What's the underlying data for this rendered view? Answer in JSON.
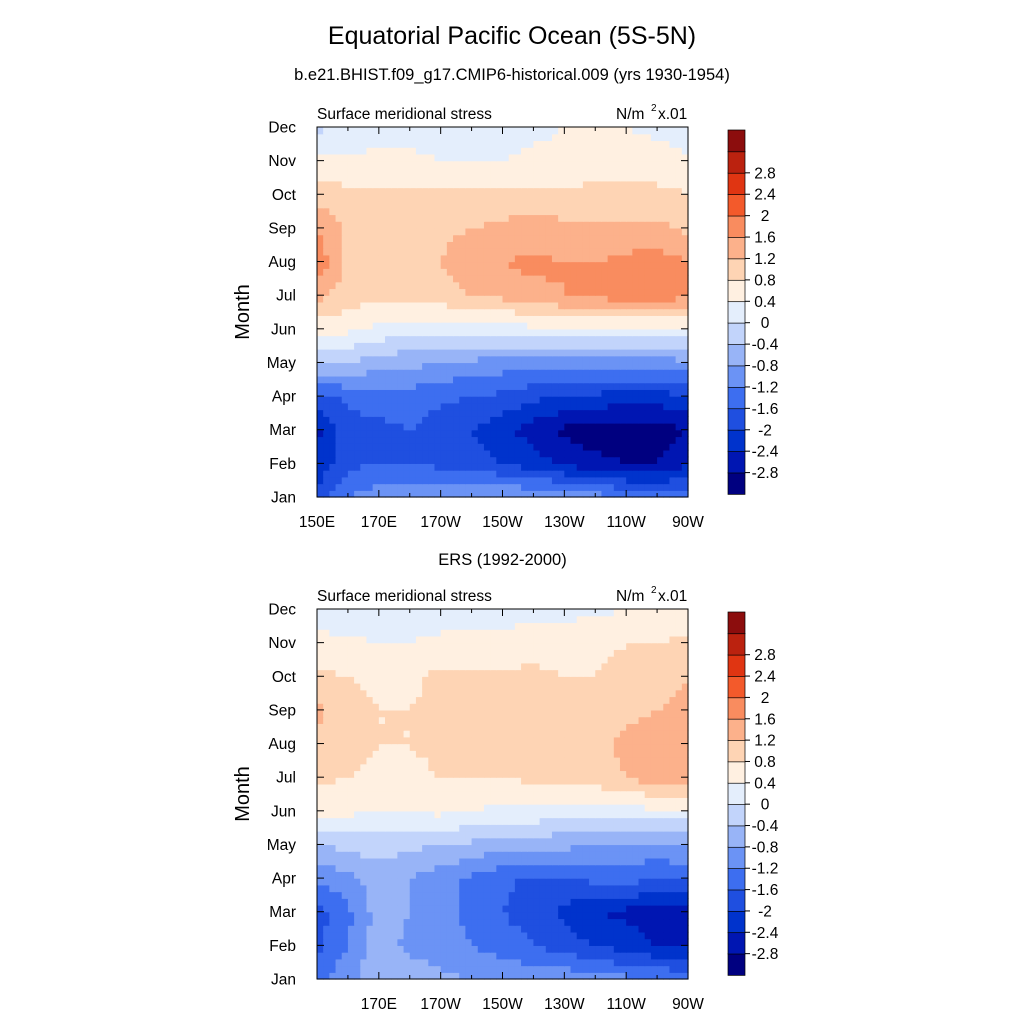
{
  "title": "Equatorial Pacific Ocean (5S-5N)",
  "subtitle": "b.e21.BHIST.f09_g17.CMIP6-historical.009 (yrs 1930-1954)",
  "colors": [
    "#000080",
    "#0016b2",
    "#0033cc",
    "#1f4fe0",
    "#3d6ef0",
    "#6b93f5",
    "#98b4f7",
    "#c2d4fb",
    "#e4eefc",
    "#fff0e1",
    "#fed4b4",
    "#fcb18b",
    "#f98c5f",
    "#f35a2b",
    "#e03512",
    "#bb220f",
    "#8c0d0d"
  ],
  "chart_data": [
    {
      "type": "heatmap",
      "title": "",
      "left_label": "Surface meridional stress",
      "units_label": "N/m",
      "units_sup": "2",
      "units_scale": "x.01",
      "ylabel": "Month",
      "y_ticks": [
        "Jan",
        "Feb",
        "Mar",
        "Apr",
        "May",
        "Jun",
        "Jul",
        "Aug",
        "Sep",
        "Oct",
        "Nov",
        "Dec"
      ],
      "x_ticks": [
        "150E",
        "170E",
        "170W",
        "150W",
        "130W",
        "110W",
        "90W"
      ],
      "colorbar_labels": [
        "-2.8",
        "-2.4",
        "-2",
        "-1.6",
        "-1.2",
        "-0.8",
        "-0.4",
        "0",
        "0.4",
        "0.8",
        "1.2",
        "1.6",
        "2",
        "2.4",
        "2.8"
      ],
      "x_lon": [
        150,
        160,
        170,
        180,
        190,
        200,
        210,
        220,
        230,
        240,
        250,
        260,
        270
      ],
      "values": [
        [
          -1.9,
          -1.2,
          -1.0,
          -0.9,
          -0.9,
          -0.8,
          -0.8,
          -0.8,
          -0.9,
          -1.0,
          -1.2,
          -1.4,
          -1.2
        ],
        [
          -2.3,
          -1.7,
          -1.6,
          -1.6,
          -1.7,
          -1.8,
          -2.0,
          -2.2,
          -2.5,
          -2.7,
          -2.8,
          -2.8,
          -2.5
        ],
        [
          -2.5,
          -1.8,
          -1.7,
          -1.6,
          -1.8,
          -2.0,
          -2.3,
          -2.6,
          -2.9,
          -3.0,
          -3.0,
          -3.0,
          -2.8
        ],
        [
          -1.7,
          -1.5,
          -1.4,
          -1.4,
          -1.5,
          -1.6,
          -1.7,
          -1.9,
          -2.0,
          -2.1,
          -2.2,
          -2.2,
          -2.0
        ],
        [
          -0.3,
          -0.4,
          -0.6,
          -0.7,
          -0.8,
          -0.9,
          -1.0,
          -1.0,
          -1.0,
          -1.0,
          -1.0,
          -1.0,
          -0.9
        ],
        [
          0.6,
          0.5,
          0.3,
          0.2,
          0.2,
          0.2,
          0.2,
          0.3,
          0.3,
          0.3,
          0.3,
          0.3,
          0.4
        ],
        [
          1.3,
          1.0,
          0.9,
          0.9,
          1.0,
          1.2,
          1.3,
          1.5,
          1.6,
          1.7,
          1.8,
          1.8,
          1.7
        ],
        [
          1.9,
          1.1,
          1.1,
          1.1,
          1.2,
          1.5,
          1.6,
          1.7,
          1.6,
          1.6,
          1.7,
          1.8,
          1.6
        ],
        [
          1.6,
          1.1,
          1.1,
          1.1,
          1.1,
          1.2,
          1.3,
          1.4,
          1.3,
          1.3,
          1.3,
          1.3,
          1.1
        ],
        [
          1.0,
          0.9,
          0.9,
          0.9,
          0.9,
          0.9,
          0.9,
          0.9,
          0.9,
          0.9,
          0.9,
          0.9,
          0.8
        ],
        [
          0.6,
          0.5,
          0.5,
          0.5,
          0.4,
          0.4,
          0.4,
          0.5,
          0.5,
          0.6,
          0.6,
          0.6,
          0.5
        ],
        [
          -0.1,
          0.1,
          0.2,
          0.2,
          0.2,
          0.2,
          0.2,
          0.3,
          0.4,
          0.4,
          0.4,
          0.3,
          0.1
        ]
      ]
    },
    {
      "type": "heatmap",
      "title": "ERS (1992-2000)",
      "left_label": "Surface meridional stress",
      "units_label": "N/m",
      "units_sup": "2",
      "units_scale": "x.01",
      "ylabel": "Month",
      "y_ticks": [
        "Jan",
        "Feb",
        "Mar",
        "Apr",
        "May",
        "Jun",
        "Jul",
        "Aug",
        "Sep",
        "Oct",
        "Nov",
        "Dec"
      ],
      "x_ticks": [
        "170E",
        "170W",
        "150W",
        "130W",
        "110W",
        "90W"
      ],
      "colorbar_labels": [
        "-2.8",
        "-2.4",
        "-2",
        "-1.6",
        "-1.2",
        "-0.8",
        "-0.4",
        "0",
        "0.4",
        "0.8",
        "1.2",
        "1.6",
        "2",
        "2.4",
        "2.8"
      ],
      "x_lon": [
        150,
        160,
        170,
        180,
        190,
        200,
        210,
        220,
        230,
        240,
        250,
        260,
        270
      ],
      "values": [
        [
          -1.3,
          -0.9,
          -0.5,
          -0.6,
          -0.7,
          -0.8,
          -0.8,
          -0.9,
          -0.9,
          -1.0,
          -1.1,
          -1.2,
          -1.3
        ],
        [
          -1.7,
          -1.2,
          -0.6,
          -0.9,
          -1.0,
          -1.2,
          -1.4,
          -1.6,
          -1.8,
          -2.0,
          -2.2,
          -2.4,
          -2.5
        ],
        [
          -1.8,
          -1.3,
          -0.6,
          -0.8,
          -1.1,
          -1.3,
          -1.6,
          -1.8,
          -2.1,
          -2.4,
          -2.5,
          -2.6,
          -2.5
        ],
        [
          -1.1,
          -0.9,
          -0.6,
          -0.8,
          -1.0,
          -1.3,
          -1.5,
          -1.7,
          -1.6,
          -1.5,
          -1.4,
          -1.6,
          -1.5
        ],
        [
          -0.4,
          -0.3,
          -0.2,
          -0.3,
          -0.4,
          -0.5,
          -0.6,
          -0.6,
          -0.7,
          -0.8,
          -0.8,
          -0.9,
          -0.8
        ],
        [
          0.5,
          0.5,
          0.4,
          0.4,
          0.5,
          0.4,
          0.3,
          0.3,
          0.2,
          0.2,
          0.3,
          0.3,
          0.3
        ],
        [
          0.9,
          0.8,
          0.7,
          0.7,
          0.8,
          0.8,
          0.8,
          0.9,
          0.9,
          1.0,
          1.2,
          1.4,
          1.4
        ],
        [
          1.1,
          0.9,
          0.8,
          0.8,
          0.9,
          1.0,
          1.0,
          1.0,
          1.0,
          1.1,
          1.3,
          1.4,
          1.4
        ],
        [
          1.3,
          0.9,
          0.8,
          0.8,
          0.9,
          0.9,
          0.9,
          0.9,
          1.0,
          1.0,
          1.1,
          1.2,
          1.3
        ],
        [
          0.9,
          0.8,
          0.7,
          0.7,
          0.9,
          0.9,
          0.9,
          0.9,
          0.8,
          0.8,
          0.9,
          1.0,
          1.2
        ],
        [
          0.5,
          0.5,
          0.4,
          0.4,
          0.5,
          0.5,
          0.5,
          0.6,
          0.6,
          0.7,
          0.8,
          0.8,
          0.9
        ],
        [
          0.2,
          0.1,
          0.0,
          0.1,
          0.2,
          0.2,
          0.2,
          0.3,
          0.3,
          0.3,
          0.4,
          0.4,
          0.4
        ]
      ]
    }
  ]
}
